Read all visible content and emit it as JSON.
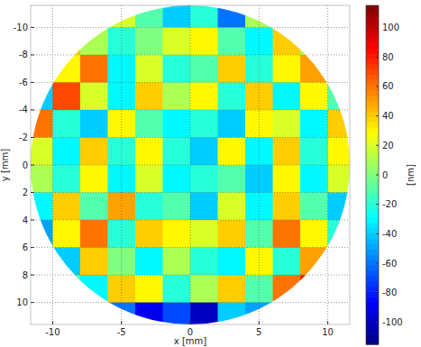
{
  "chart_data": {
    "type": "heatmap",
    "x_label": "x [mm]",
    "y_label": "y [mm]",
    "colorbar_label": "[nm]",
    "xlim": [
      -11.6,
      11.6
    ],
    "ylim": [
      11.6,
      -11.6
    ],
    "xticks": [
      -10,
      -5,
      0,
      5,
      10
    ],
    "yticks": [
      -10,
      -8,
      -6,
      -4,
      -2,
      0,
      2,
      4,
      6,
      8,
      10
    ],
    "grid": true,
    "radius": 11.6,
    "x_centers": [
      -11,
      -9,
      -7,
      -5,
      -3,
      -1,
      1,
      3,
      5,
      7,
      9,
      11
    ],
    "y_centers": [
      -11,
      -9,
      -7,
      -5,
      -3,
      -1,
      1,
      3,
      5,
      7,
      9,
      11
    ],
    "cells": [
      [
        null,
        null,
        null,
        20,
        -10,
        -40,
        -20,
        -60,
        10,
        null,
        null,
        null
      ],
      [
        null,
        40,
        10,
        -20,
        0,
        20,
        30,
        -10,
        -30,
        40,
        10,
        null
      ],
      [
        null,
        30,
        60,
        -30,
        20,
        -20,
        -10,
        40,
        -20,
        30,
        50,
        null
      ],
      [
        -40,
        70,
        20,
        -30,
        40,
        10,
        30,
        -20,
        40,
        -30,
        30,
        -10
      ],
      [
        60,
        -20,
        -40,
        30,
        -10,
        -30,
        -20,
        -40,
        30,
        20,
        -30,
        40
      ],
      [
        20,
        -30,
        40,
        -20,
        30,
        -20,
        -40,
        30,
        -30,
        40,
        -20,
        30
      ],
      [
        10,
        -20,
        30,
        -30,
        20,
        -30,
        -20,
        -10,
        -40,
        30,
        -30,
        20
      ],
      [
        -30,
        40,
        -10,
        50,
        -20,
        -10,
        -40,
        20,
        -30,
        40,
        -10,
        -40
      ],
      [
        -50,
        30,
        60,
        -20,
        40,
        30,
        20,
        40,
        -10,
        60,
        30,
        -20
      ],
      [
        null,
        -40,
        40,
        0,
        -30,
        10,
        -20,
        -30,
        30,
        -20,
        50,
        null
      ],
      [
        null,
        -10,
        -30,
        40,
        30,
        -20,
        10,
        40,
        -10,
        60,
        80,
        null
      ],
      [
        null,
        null,
        null,
        -60,
        -90,
        -70,
        -100,
        -40,
        -50,
        null,
        null,
        null
      ]
    ],
    "color_range": [
      -115,
      115
    ],
    "color_ticks": [
      -100,
      -80,
      -60,
      -40,
      -20,
      0,
      20,
      40,
      60,
      80,
      100
    ]
  }
}
